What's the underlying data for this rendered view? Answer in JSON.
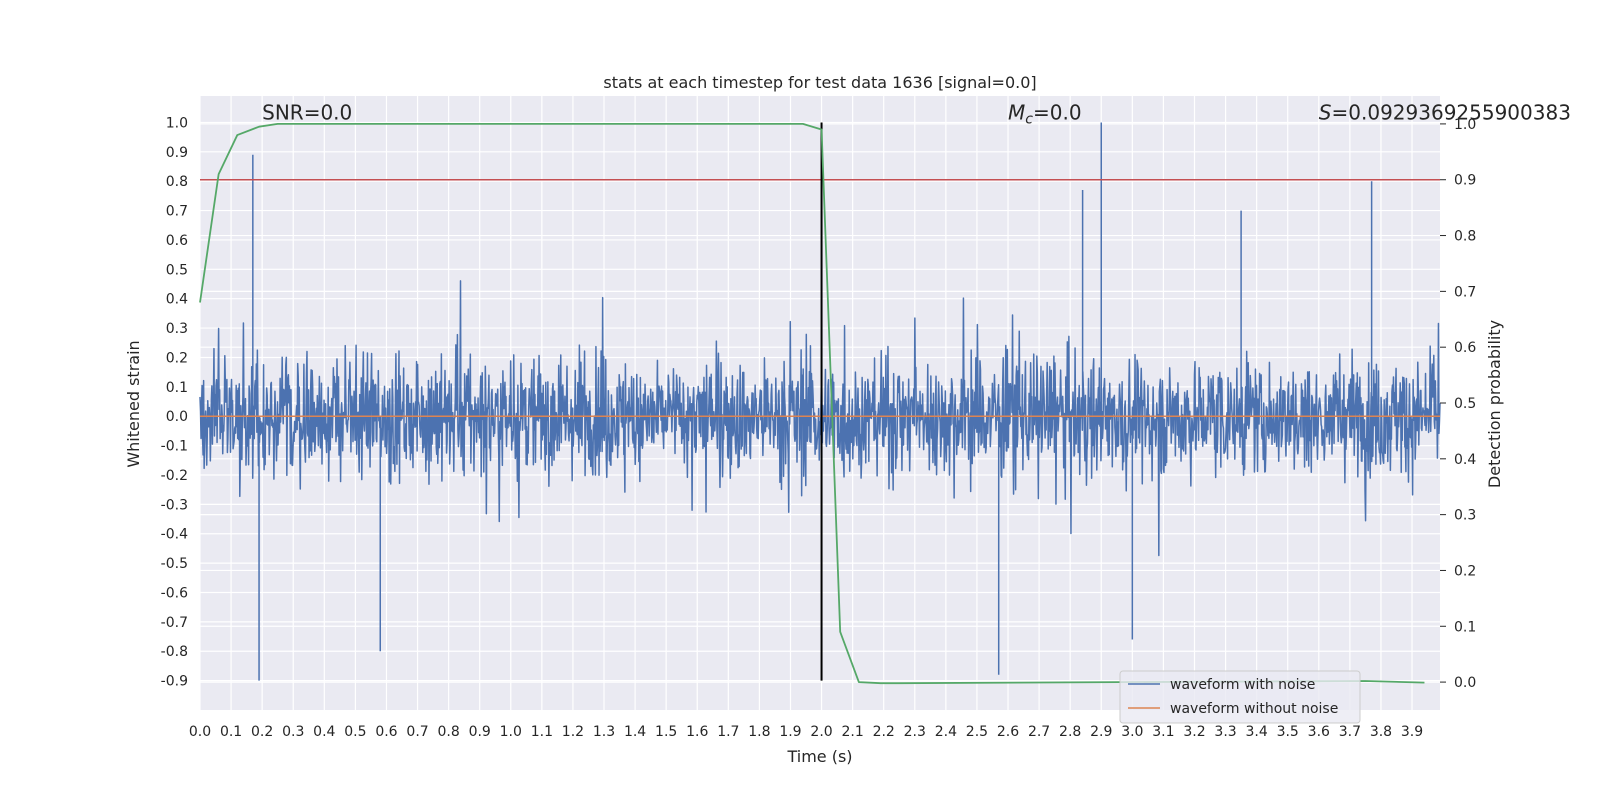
{
  "chart_data": {
    "type": "line",
    "title": "stats at each timestep for test data 1636 [signal=0.0]",
    "xlabel": "Time (s)",
    "ylabel": "Whitened strain",
    "y2label": "Detection probability",
    "xlim": [
      0.0,
      3.99
    ],
    "ylim": [
      -1.0,
      1.09
    ],
    "y2lim": [
      -0.05,
      1.05
    ],
    "x_ticks": [
      0.0,
      0.1,
      0.2,
      0.3,
      0.4,
      0.5,
      0.6,
      0.7,
      0.8,
      0.9,
      1.0,
      1.1,
      1.2,
      1.3,
      1.4,
      1.5,
      1.6,
      1.7,
      1.8,
      1.9,
      2.0,
      2.1,
      2.2,
      2.3,
      2.4,
      2.5,
      2.6,
      2.7,
      2.8,
      2.9,
      3.0,
      3.1,
      3.2,
      3.3,
      3.4,
      3.5,
      3.6,
      3.7,
      3.8,
      3.9
    ],
    "y_ticks": [
      -0.9,
      -0.8,
      -0.7,
      -0.6,
      -0.5,
      -0.4,
      -0.3,
      -0.2,
      -0.1,
      0.0,
      0.1,
      0.2,
      0.3,
      0.4,
      0.5,
      0.6,
      0.7,
      0.8,
      0.9,
      1.0
    ],
    "y2_ticks": [
      0.0,
      0.1,
      0.2,
      0.3,
      0.4,
      0.5,
      0.6,
      0.7,
      0.8,
      0.9,
      1.0
    ],
    "grid": true,
    "legend_position": "bottom-right",
    "annotations": [
      {
        "text": "SNR=0.0",
        "x": 0.2,
        "y": 1.01
      },
      {
        "text": "M_c=0.0",
        "x": 2.6,
        "y": 1.01
      },
      {
        "text": "S=0.0929369255900383",
        "x": 3.6,
        "y": 1.01
      }
    ],
    "series": [
      {
        "name": "waveform with noise",
        "axis": "left",
        "color": "#4c72b0",
        "description_samples": "dense noise between about -0.55 and 0.6",
        "peaks": [
          {
            "x": 0.17,
            "y": 0.89
          },
          {
            "x": 0.19,
            "y": -0.9
          },
          {
            "x": 0.58,
            "y": -0.8
          },
          {
            "x": 2.57,
            "y": -0.88
          },
          {
            "x": 2.9,
            "y": 1.0
          },
          {
            "x": 3.77,
            "y": 0.8
          },
          {
            "x": 2.84,
            "y": 0.77
          },
          {
            "x": 3.35,
            "y": 0.7
          },
          {
            "x": 3.0,
            "y": -0.76
          }
        ]
      },
      {
        "name": "waveform without noise",
        "axis": "left",
        "color": "#dd8452",
        "x": [
          0.0,
          3.99
        ],
        "y": [
          0.0,
          0.0
        ]
      },
      {
        "name": "",
        "axis": "right",
        "color": "#55a868",
        "x": [
          0.0,
          0.06,
          0.12,
          0.19,
          0.25,
          0.31,
          1.94,
          2.0,
          2.06,
          2.12,
          2.19,
          2.25,
          3.75,
          3.94
        ],
        "y": [
          0.68,
          0.91,
          0.98,
          0.995,
          1.0,
          1.0,
          1.0,
          0.99,
          0.09,
          0.0,
          -0.002,
          -0.002,
          0.002,
          -0.001
        ]
      }
    ],
    "reference_lines": [
      {
        "orientation": "horizontal",
        "axis": "right",
        "value": 0.9,
        "color": "#c44e52"
      },
      {
        "orientation": "vertical",
        "value": 2.0,
        "from": -0.9,
        "to": 1.0,
        "color": "#000000"
      }
    ]
  }
}
